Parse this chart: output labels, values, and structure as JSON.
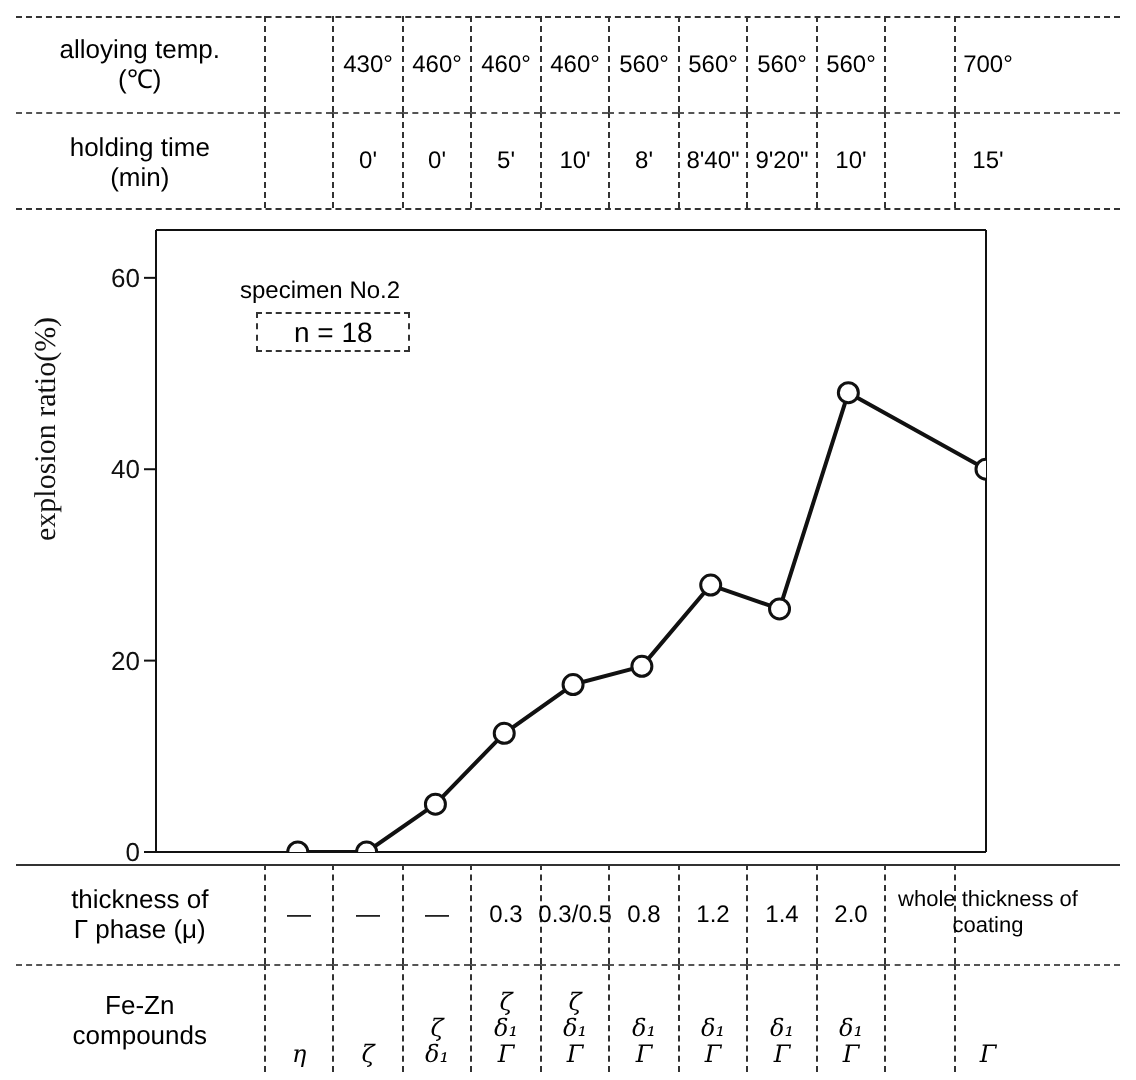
{
  "chart_data": {
    "type": "line",
    "ylabel": "explosion ratio(%)",
    "categories": [
      "\n\n—\nη",
      "430°\n0'\n—\nζ",
      "460°\n0'\n—\nζ δ₁",
      "460°\n5'\n0.3\nζ δ₁ Γ",
      "460°\n10'\n0.3/0.5\nζ δ₁ Γ",
      "560°\n8'\n0.8\nδ₁ Γ",
      "560°\n8'40\"\n1.2\nδ₁ Γ",
      "560°\n9'20\"\n1.4\nδ₁ Γ",
      "560°\n10'\n2.0\nδ₁ Γ",
      null,
      "700°\n15'\nwhole thickness of coating\nΓ"
    ],
    "values": [
      0,
      0,
      5,
      12.4,
      17.5,
      19.4,
      27.9,
      25.4,
      48,
      null,
      40
    ],
    "color": "#111111",
    "marker": "circle",
    "line_style": "solid",
    "ylim": [
      0,
      65
    ],
    "yticks": [
      0,
      20,
      40,
      60
    ],
    "annotations": [
      "alloying temp.\n(℃)",
      "holding time\n(min)",
      "thickness of\nΓ phase (μ)",
      "Fe-Zn\ncompounds",
      "specimen No.2",
      "n = 18"
    ]
  }
}
